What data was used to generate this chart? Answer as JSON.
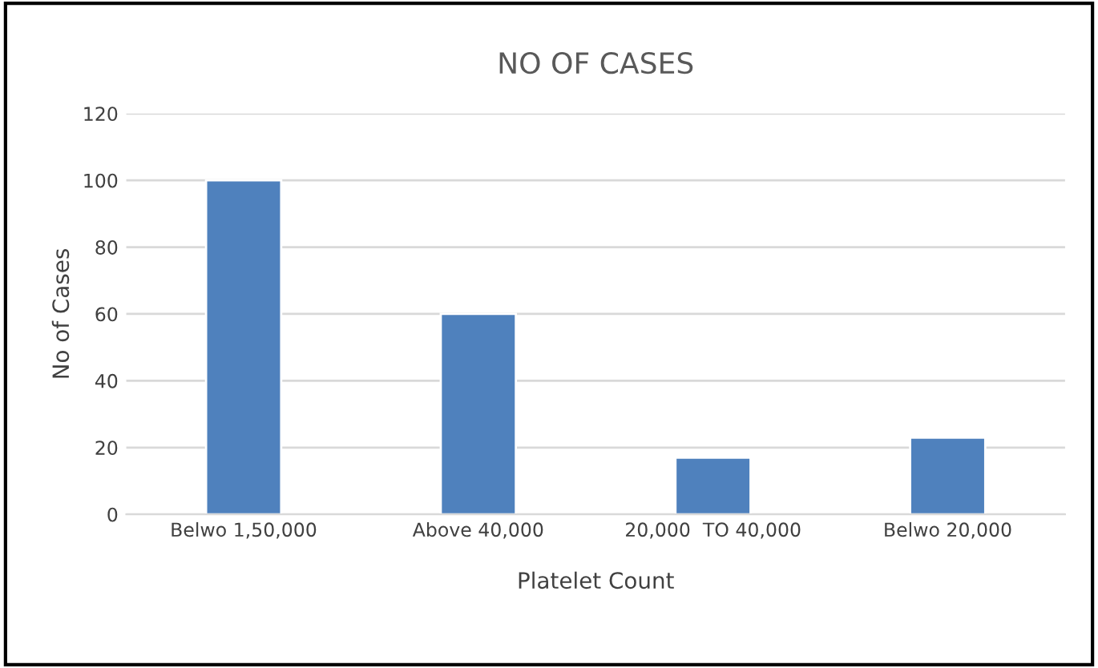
{
  "chart_data": {
    "type": "bar",
    "title": "NO OF CASES",
    "xlabel": "Platelet Count",
    "ylabel": "No of Cases",
    "categories": [
      "Belwo 1,50,000",
      "Above 40,000",
      "20,000  TO 40,000",
      "Belwo 20,000"
    ],
    "values": [
      100,
      60,
      17,
      23
    ],
    "color": "#4f81bd",
    "ylim": [
      0,
      120
    ],
    "yticks": [
      0,
      20,
      40,
      60,
      80,
      100,
      120
    ],
    "grid": "y"
  }
}
